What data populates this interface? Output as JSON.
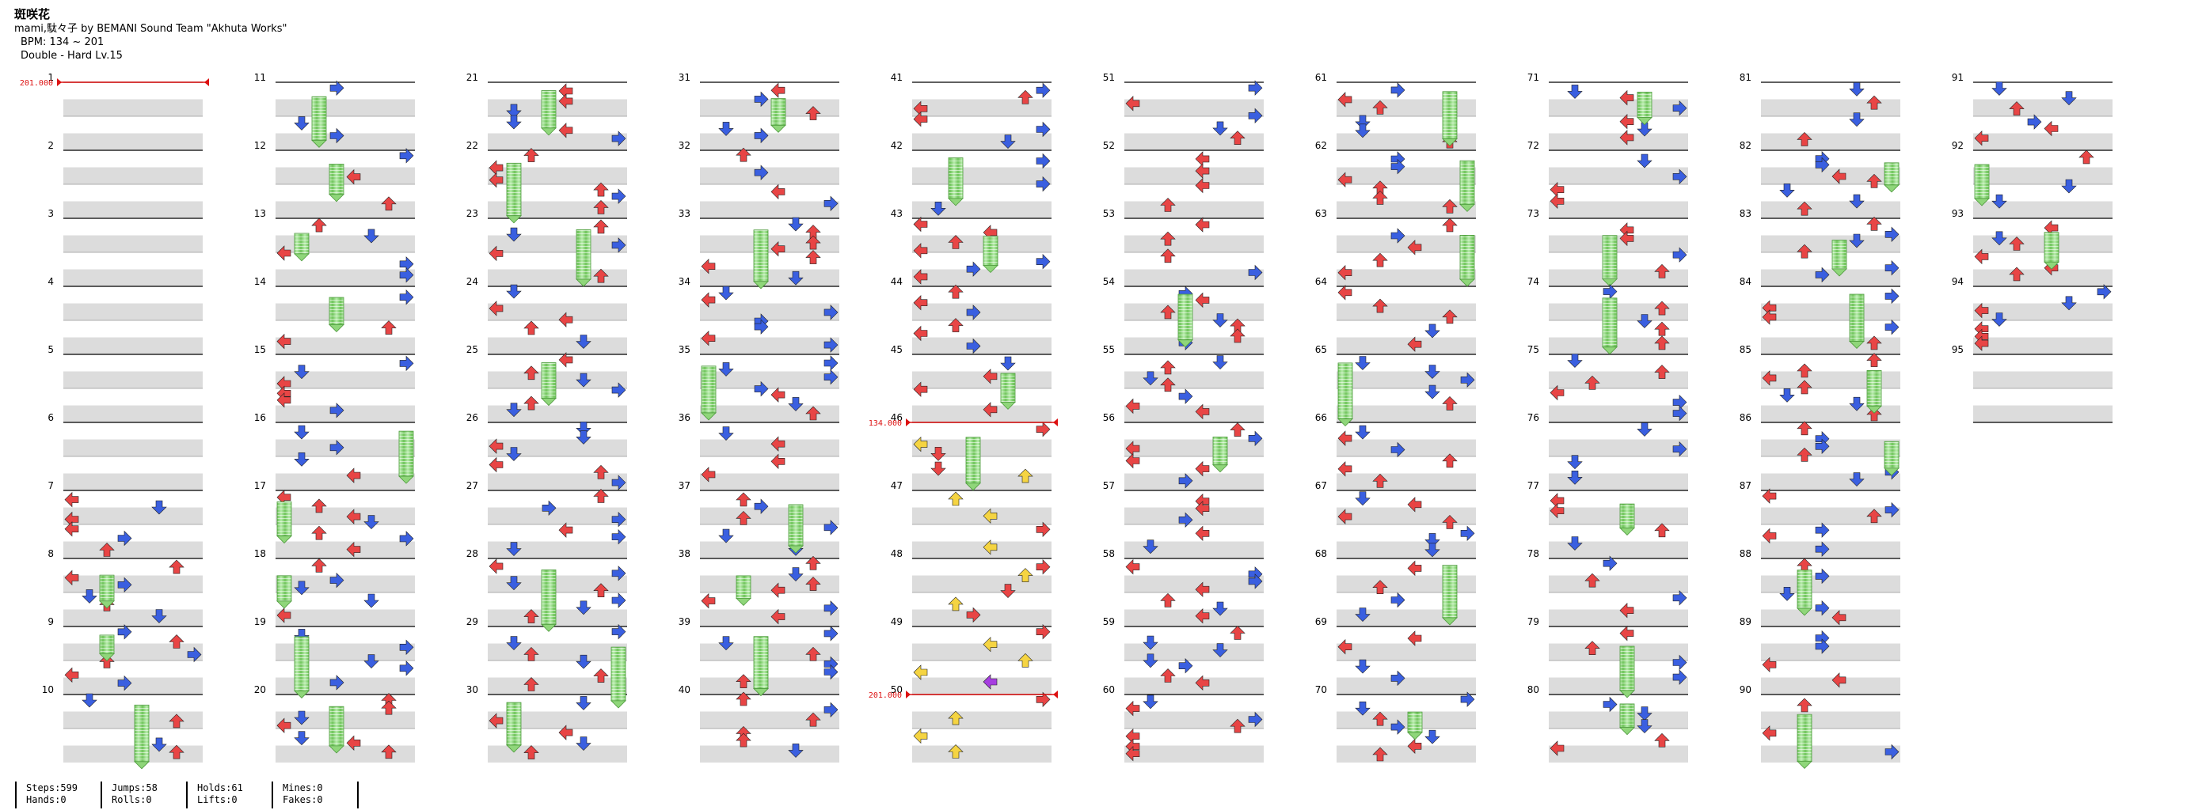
{
  "song": {
    "title": "斑咲花",
    "artist": "mami,駄々子 by BEMANI Sound Team \"Akhuta Works\"",
    "bpm": "BPM: 134 ~ 201",
    "difficulty": "Double - Hard Lv.15"
  },
  "chart_data": {
    "type": "step_chart",
    "mode": "Double",
    "lanes": 8,
    "measures": [
      1,
      2,
      3,
      4,
      5,
      6,
      7,
      8,
      9,
      10,
      11,
      12,
      13,
      14,
      15,
      16,
      17,
      18,
      19,
      20,
      21,
      22,
      23,
      24,
      25,
      26,
      27,
      28,
      29,
      30,
      31,
      32,
      33,
      34,
      35,
      36,
      37,
      38,
      39,
      40,
      41,
      42,
      43,
      44,
      45,
      46,
      47,
      48,
      49,
      50,
      51,
      52,
      53,
      54,
      55,
      56,
      57,
      58,
      59,
      60,
      61,
      62,
      63,
      64,
      65,
      66,
      67,
      68,
      69,
      70,
      71,
      72,
      73,
      74,
      75,
      76,
      77,
      78,
      79,
      80,
      81,
      82,
      83,
      84,
      85,
      86,
      87,
      88,
      89,
      90,
      91,
      92,
      93,
      94,
      95
    ],
    "bpm_changes": [
      {
        "measure": 1,
        "bpm": 201,
        "label": "201.000"
      },
      {
        "measure": 46,
        "bpm": 134,
        "label": "134.000"
      },
      {
        "measure": 50,
        "bpm": 201,
        "label": "201.000"
      }
    ],
    "colors": {
      "red": "#e84545",
      "blue": "#3a5fe0",
      "yellow": "#f5d442",
      "purple": "#a63de0",
      "hold": "#8fd67a",
      "bpm_marker": "#dd1111"
    }
  },
  "stats": [
    {
      "line1": "Steps:599",
      "line2": "Hands:0"
    },
    {
      "line1": "Jumps:58",
      "line2": "Rolls:0"
    },
    {
      "line1": "Holds:61",
      "line2": "Lifts:0"
    },
    {
      "line1": "Mines:0",
      "line2": "Fakes:0"
    }
  ]
}
